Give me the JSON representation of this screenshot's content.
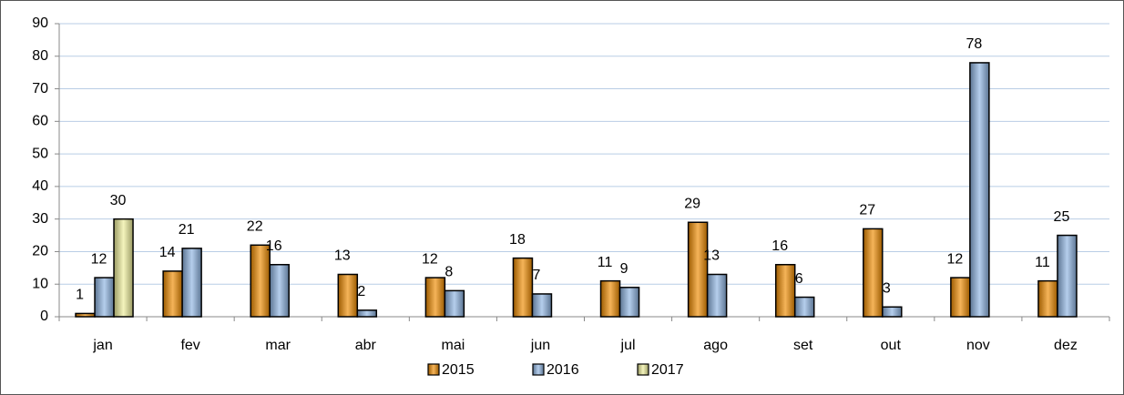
{
  "chart_data": {
    "type": "bar",
    "categories": [
      "jan",
      "fev",
      "mar",
      "abr",
      "mai",
      "jun",
      "jul",
      "ago",
      "set",
      "out",
      "nov",
      "dez"
    ],
    "series": [
      {
        "name": "2015",
        "color": "#f08c00",
        "values": [
          1,
          14,
          22,
          13,
          12,
          18,
          11,
          29,
          16,
          27,
          12,
          11
        ]
      },
      {
        "name": "2016",
        "color": "#8db4e2",
        "values": [
          12,
          21,
          16,
          2,
          8,
          7,
          9,
          13,
          6,
          3,
          78,
          25
        ]
      },
      {
        "name": "2017",
        "color": "#eeee9a",
        "values": [
          30,
          null,
          null,
          null,
          null,
          null,
          null,
          null,
          null,
          null,
          null,
          null
        ]
      }
    ],
    "ylim": [
      0,
      90
    ],
    "yticks": [
      0,
      10,
      20,
      30,
      40,
      50,
      60,
      70,
      80,
      90
    ],
    "grid": true,
    "legend": "bottom"
  }
}
